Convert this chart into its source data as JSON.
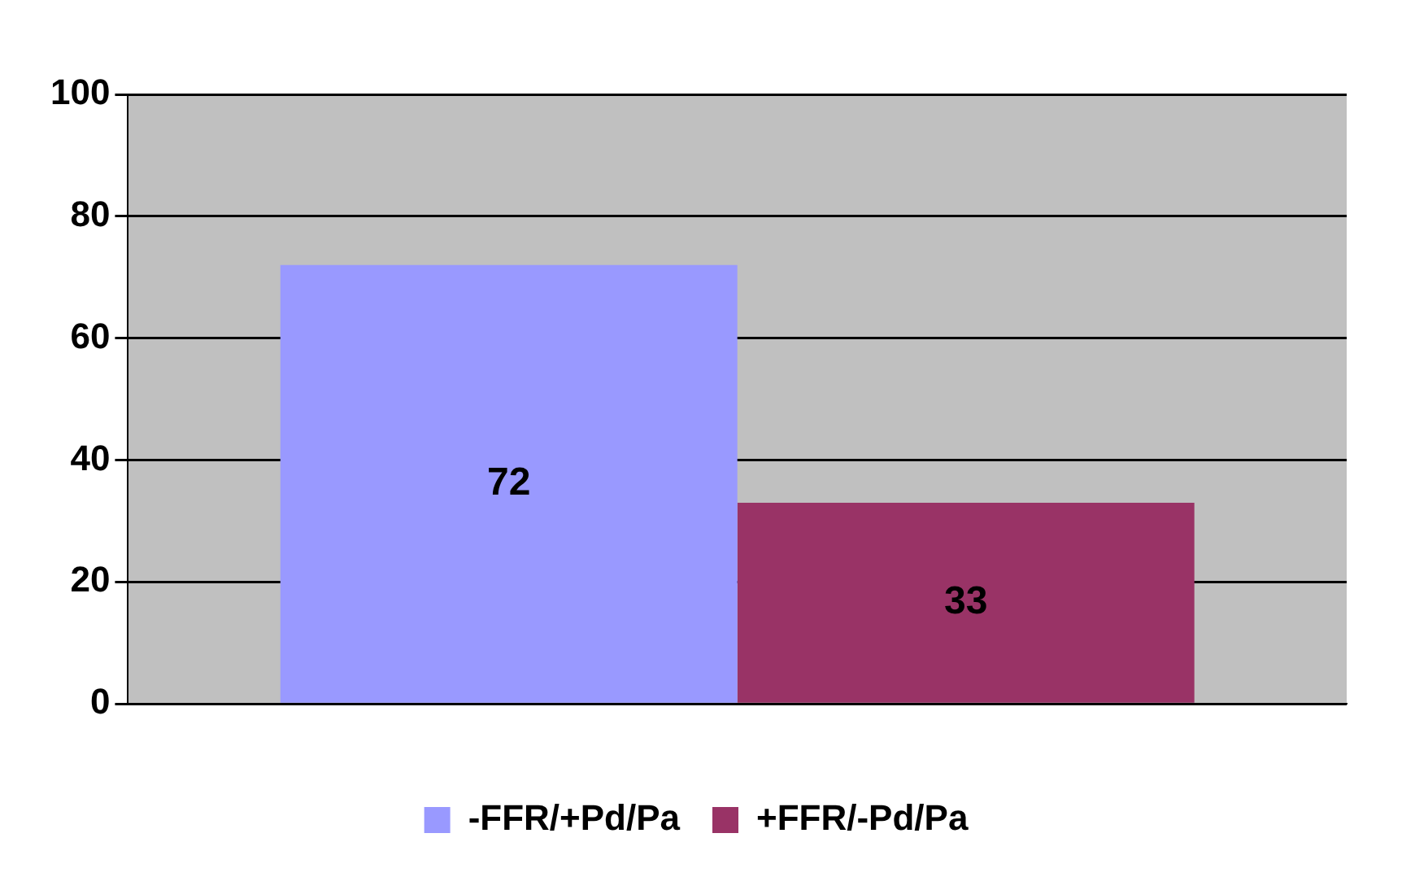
{
  "chart_data": {
    "type": "bar",
    "categories": [
      null
    ],
    "series": [
      {
        "name": "-FFR/+Pd/Pa",
        "color": "#9999ff",
        "values": [
          72
        ]
      },
      {
        "name": "+FFR/-Pd/Pa",
        "color": "#993366",
        "values": [
          33
        ]
      }
    ],
    "ylim": [
      0,
      100
    ],
    "yticks": [
      0,
      20,
      40,
      60,
      80,
      100
    ],
    "grid": "y",
    "legend": "bottom",
    "data_labels": true
  }
}
